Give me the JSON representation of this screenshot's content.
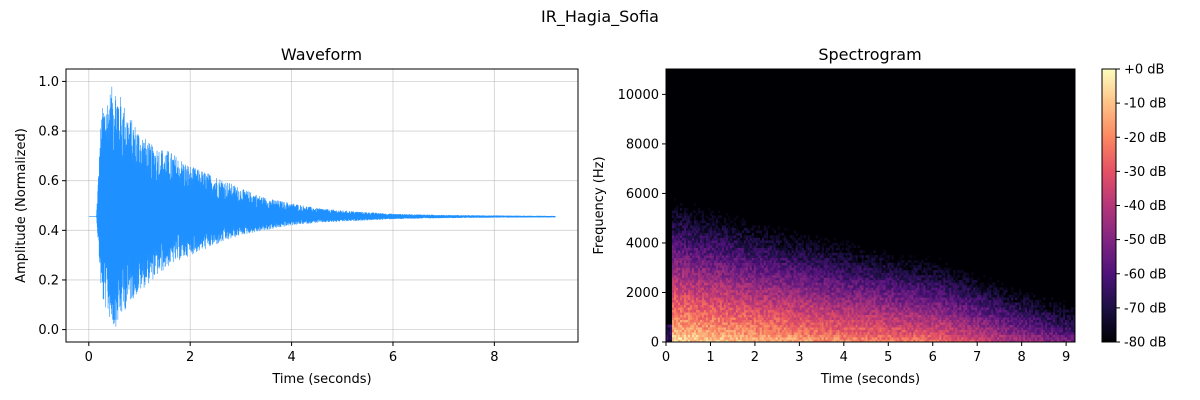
{
  "figure": {
    "suptitle": "IR_Hagia_Sofia"
  },
  "chart_data": [
    {
      "type": "line",
      "title": "Waveform",
      "xlabel": "Time (seconds)",
      "ylabel": "Amplitude (Normalized)",
      "xlim": [
        -0.45,
        9.65
      ],
      "ylim": [
        -0.05,
        1.05
      ],
      "xticks": [
        0,
        2,
        4,
        6,
        8
      ],
      "xtick_labels": [
        "0",
        "2",
        "4",
        "6",
        "8"
      ],
      "yticks": [
        0.0,
        0.2,
        0.4,
        0.6,
        0.8,
        1.0
      ],
      "ytick_labels": [
        "0.0",
        "0.2",
        "0.4",
        "0.6",
        "0.8",
        "1.0"
      ],
      "grid": true,
      "color": "#1e90ff",
      "duration": 9.2,
      "baseline": 0.455,
      "onset": 0.15,
      "envelope": {
        "x": [
          0.15,
          0.25,
          0.5,
          0.8,
          1.2,
          1.6,
          2.0,
          2.5,
          3.0,
          3.5,
          4.0,
          4.5,
          5.0,
          6.0,
          7.0,
          8.0,
          9.2
        ],
        "max": [
          0.46,
          0.89,
          1.0,
          0.86,
          0.75,
          0.72,
          0.66,
          0.62,
          0.57,
          0.53,
          0.51,
          0.49,
          0.48,
          0.467,
          0.462,
          0.46,
          0.458
        ],
        "min": [
          0.45,
          0.12,
          0.0,
          0.11,
          0.19,
          0.26,
          0.3,
          0.34,
          0.38,
          0.4,
          0.42,
          0.43,
          0.435,
          0.445,
          0.449,
          0.451,
          0.452
        ]
      }
    },
    {
      "type": "heatmap",
      "title": "Spectrogram",
      "xlabel": "Time (seconds)",
      "ylabel": "Frequency (Hz)",
      "xlim": [
        0,
        9.2
      ],
      "ylim": [
        0,
        11025
      ],
      "xticks": [
        0,
        1,
        2,
        3,
        4,
        5,
        6,
        7,
        8,
        9
      ],
      "xtick_labels": [
        "0",
        "1",
        "2",
        "3",
        "4",
        "5",
        "6",
        "7",
        "8",
        "9"
      ],
      "yticks": [
        0,
        2000,
        4000,
        6000,
        8000,
        10000
      ],
      "ytick_labels": [
        "0",
        "2000",
        "4000",
        "6000",
        "8000",
        "10000"
      ],
      "colormap": "magma",
      "colorbar": {
        "range_db": [
          -80,
          0
        ],
        "ticks": [
          0,
          -10,
          -20,
          -30,
          -40,
          -50,
          -60,
          -70,
          -80
        ],
        "tick_labels": [
          "+0 dB",
          "-10 dB",
          "-20 dB",
          "-30 dB",
          "-40 dB",
          "-50 dB",
          "-60 dB",
          "-70 dB",
          "-80 dB"
        ]
      }
    }
  ]
}
